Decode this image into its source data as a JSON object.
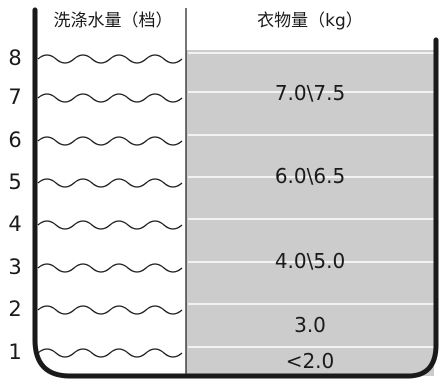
{
  "table": {
    "water_header": "洗涤水量（档）",
    "load_header": "衣物量（kg）",
    "levels": [
      "1",
      "2",
      "3",
      "4",
      "5",
      "6",
      "7",
      "8"
    ],
    "loads": [
      {
        "label": "7.0\\7.5",
        "levels": [
          7,
          8
        ]
      },
      {
        "label": "6.0\\6.5",
        "levels": [
          5,
          6
        ]
      },
      {
        "label": "4.0\\5.0",
        "levels": [
          3,
          4
        ]
      },
      {
        "label": "3.0",
        "levels": [
          2
        ]
      },
      {
        "label": "<2.0",
        "levels": [
          1
        ]
      }
    ]
  },
  "colors": {
    "shade": "#cccccc",
    "line": "#1a1a1a",
    "divider": "#ffffff"
  }
}
